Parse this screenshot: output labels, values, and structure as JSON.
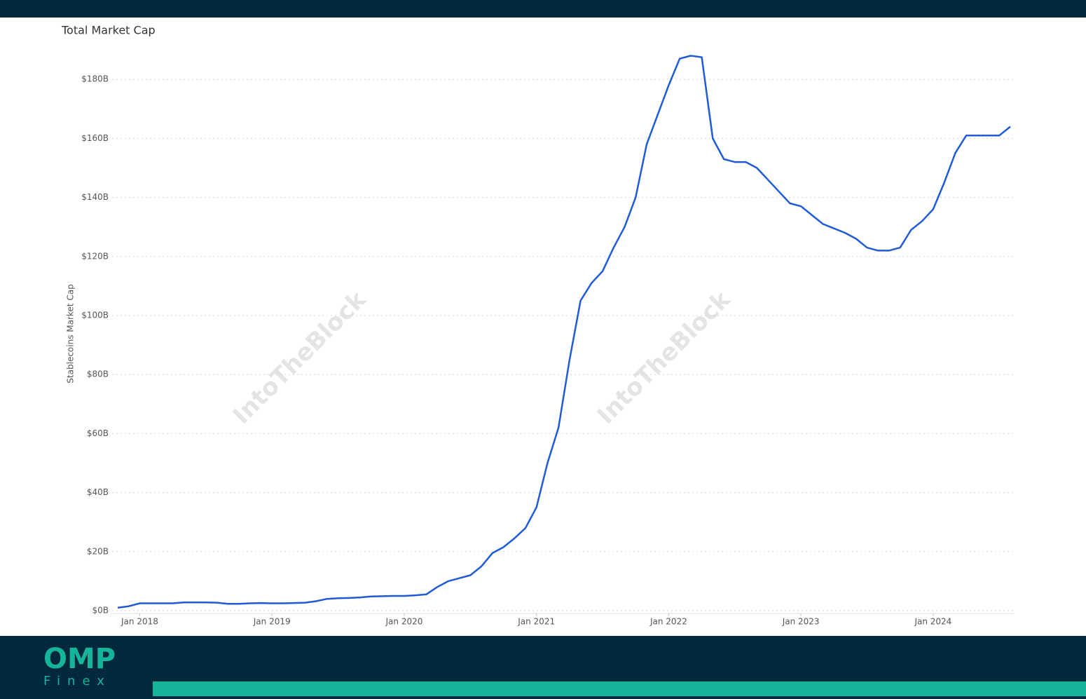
{
  "chart_data": {
    "type": "line",
    "title": "Total Market Cap",
    "ylabel": "Stablecoins Market Cap",
    "watermark": "IntoTheBlock",
    "grid": true,
    "x": [
      "2017-11",
      "2017-12",
      "2018-01",
      "2018-02",
      "2018-03",
      "2018-04",
      "2018-05",
      "2018-06",
      "2018-07",
      "2018-08",
      "2018-09",
      "2018-10",
      "2018-11",
      "2018-12",
      "2019-01",
      "2019-02",
      "2019-03",
      "2019-04",
      "2019-05",
      "2019-06",
      "2019-07",
      "2019-08",
      "2019-09",
      "2019-10",
      "2019-11",
      "2019-12",
      "2020-01",
      "2020-02",
      "2020-03",
      "2020-04",
      "2020-05",
      "2020-06",
      "2020-07",
      "2020-08",
      "2020-09",
      "2020-10",
      "2020-11",
      "2020-12",
      "2021-01",
      "2021-02",
      "2021-03",
      "2021-04",
      "2021-05",
      "2021-06",
      "2021-07",
      "2021-08",
      "2021-09",
      "2021-10",
      "2021-11",
      "2021-12",
      "2022-01",
      "2022-02",
      "2022-03",
      "2022-04",
      "2022-05",
      "2022-06",
      "2022-07",
      "2022-08",
      "2022-09",
      "2022-10",
      "2022-11",
      "2022-12",
      "2023-01",
      "2023-02",
      "2023-03",
      "2023-04",
      "2023-05",
      "2023-06",
      "2023-07",
      "2023-08",
      "2023-09",
      "2023-10",
      "2023-11",
      "2023-12",
      "2024-01",
      "2024-02",
      "2024-03",
      "2024-04",
      "2024-05",
      "2024-06",
      "2024-07",
      "2024-08"
    ],
    "series": [
      {
        "name": "Stablecoins Market Cap",
        "color": "#1f5bd6",
        "values": [
          1,
          1.5,
          2.5,
          2.5,
          2.5,
          2.5,
          2.8,
          2.8,
          2.8,
          2.7,
          2.3,
          2.3,
          2.5,
          2.6,
          2.5,
          2.5,
          2.6,
          2.7,
          3.2,
          4,
          4.2,
          4.3,
          4.5,
          4.8,
          4.9,
          5,
          5,
          5.2,
          5.5,
          8,
          10,
          11,
          12,
          15,
          19.5,
          21.5,
          24.5,
          28,
          35,
          50,
          62,
          85,
          105,
          111,
          115,
          123,
          130,
          140,
          158,
          168,
          178,
          187,
          188,
          187.5,
          160,
          153,
          152,
          152,
          150,
          146,
          142,
          138,
          137,
          134,
          131,
          129.5,
          128,
          126,
          123,
          122,
          122,
          123,
          129,
          132,
          136,
          145,
          155,
          161,
          161,
          161,
          161,
          164
        ]
      }
    ],
    "xlim": [
      "2017-11",
      "2024-08"
    ],
    "xticks": [
      {
        "value": "2018-01",
        "label": "Jan 2018"
      },
      {
        "value": "2019-01",
        "label": "Jan 2019"
      },
      {
        "value": "2020-01",
        "label": "Jan 2020"
      },
      {
        "value": "2021-01",
        "label": "Jan 2021"
      },
      {
        "value": "2022-01",
        "label": "Jan 2022"
      },
      {
        "value": "2023-01",
        "label": "Jan 2023"
      },
      {
        "value": "2024-01",
        "label": "Jan 2024"
      }
    ],
    "ylim": [
      0,
      200
    ],
    "yticks": [
      {
        "value": 0,
        "label": "$0B"
      },
      {
        "value": 20,
        "label": "$20B"
      },
      {
        "value": 40,
        "label": "$40B"
      },
      {
        "value": 60,
        "label": "$60B"
      },
      {
        "value": 80,
        "label": "$80B"
      },
      {
        "value": 100,
        "label": "$100B"
      },
      {
        "value": 120,
        "label": "$120B"
      },
      {
        "value": 140,
        "label": "$140B"
      },
      {
        "value": 160,
        "label": "$160B"
      },
      {
        "value": 180,
        "label": "$180B"
      }
    ]
  },
  "branding": {
    "logo": "OMP",
    "sublogo": "Finex"
  }
}
